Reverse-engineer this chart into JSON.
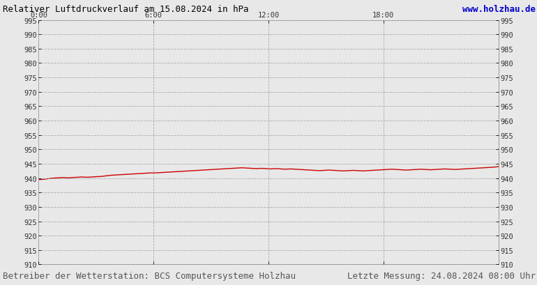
{
  "title_left": "Relativer Luftdruckverlauf am 15.08.2024 in hPa",
  "title_right": "www.holzhau.de",
  "footer_left": "Betreiber der Wetterstation: BCS Computersysteme Holzhau",
  "footer_right": "Letzte Messung: 24.08.2024 08:00 Uhr",
  "bg_color": "#e8e8e8",
  "plot_bg_color": "#e8e8e8",
  "line_color": "#cc0000",
  "grid_color": "#aaaaaa",
  "title_color_left": "#000000",
  "title_color_right": "#0000cc",
  "footer_color": "#555555",
  "ylim": [
    910,
    995
  ],
  "ytick_step": 5,
  "xtick_labels": [
    "0:00",
    "6:00",
    "12:00",
    "18:00"
  ],
  "xtick_positions": [
    0.0,
    0.25,
    0.5,
    0.75
  ],
  "pressure_data": [
    939.5,
    939.6,
    939.8,
    940.0,
    940.1,
    940.2,
    940.1,
    940.2,
    940.3,
    940.4,
    940.3,
    940.4,
    940.5,
    940.6,
    940.8,
    941.0,
    941.1,
    941.2,
    941.3,
    941.4,
    941.5,
    941.6,
    941.7,
    941.8,
    941.8,
    941.9,
    942.0,
    942.1,
    942.2,
    942.3,
    942.4,
    942.5,
    942.6,
    942.7,
    942.8,
    942.9,
    943.0,
    943.1,
    943.2,
    943.3,
    943.4,
    943.5,
    943.6,
    943.5,
    943.4,
    943.3,
    943.4,
    943.3,
    943.2,
    943.3,
    943.2,
    943.1,
    943.2,
    943.1,
    943.0,
    942.9,
    942.8,
    942.7,
    942.6,
    942.7,
    942.8,
    942.7,
    942.6,
    942.5,
    942.6,
    942.7,
    942.6,
    942.5,
    942.6,
    942.7,
    942.8,
    942.9,
    943.0,
    943.1,
    943.0,
    942.9,
    942.8,
    942.9,
    943.0,
    943.1,
    943.0,
    942.9,
    943.0,
    943.1,
    943.2,
    943.1,
    943.0,
    943.1,
    943.2,
    943.3,
    943.4,
    943.5,
    943.6,
    943.7,
    943.8,
    944.0
  ]
}
